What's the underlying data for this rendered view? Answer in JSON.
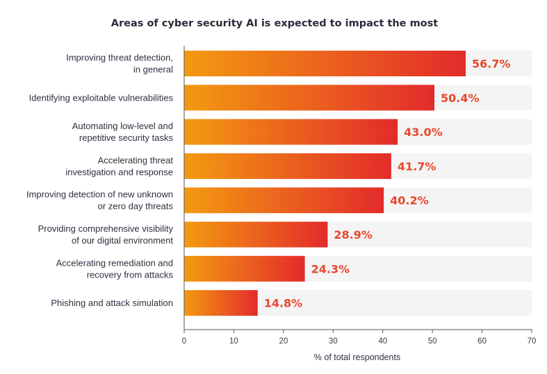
{
  "chart_data": {
    "type": "bar",
    "orientation": "horizontal",
    "title": "Areas of cyber security AI is expected to impact the most",
    "xlabel": "% of total respondents",
    "ylabel": "",
    "xlim": [
      0,
      70
    ],
    "xticks": [
      0,
      10,
      20,
      30,
      40,
      50,
      60,
      70
    ],
    "grid": false,
    "categories": [
      [
        "Improving threat detection,",
        "in general"
      ],
      [
        "Identifying exploitable vulnerabilities"
      ],
      [
        "Automating low-level and",
        "repetitive security tasks"
      ],
      [
        "Accelerating threat",
        "investigation and response"
      ],
      [
        "Improving detection of new unknown",
        "or zero day threats"
      ],
      [
        "Providing comprehensive visibility",
        "of our digital environment"
      ],
      [
        "Accelerating remediation and",
        "recovery from attacks"
      ],
      [
        "Phishing and attack simulation"
      ]
    ],
    "values": [
      56.7,
      50.4,
      43.0,
      41.7,
      40.2,
      28.9,
      24.3,
      14.8
    ],
    "value_labels": [
      "56.7%",
      "50.4%",
      "43.0%",
      "41.7%",
      "40.2%",
      "28.9%",
      "24.3%",
      "14.8%"
    ],
    "colors": {
      "bar_start": "#f39a10",
      "bar_end": "#e32b2b",
      "track": "#f4f4f4",
      "value_text": "#e8472c",
      "axis": "#555555"
    }
  }
}
